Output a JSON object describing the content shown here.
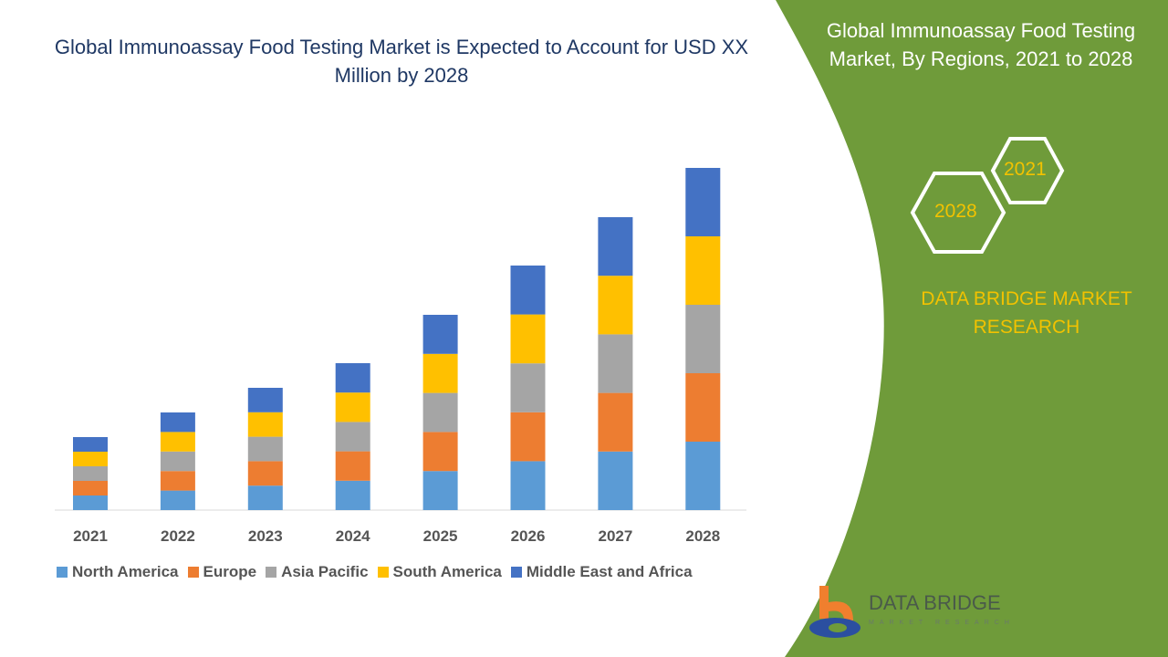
{
  "chart_data": {
    "type": "bar",
    "stacked": true,
    "title": "Global Immunoassay Food Testing Market is Expected to Account for USD XX Million by 2028",
    "categories": [
      "2021",
      "2022",
      "2023",
      "2024",
      "2025",
      "2026",
      "2027",
      "2028"
    ],
    "series": [
      {
        "name": "North America",
        "color": "#5b9bd5",
        "values": [
          16,
          21.4,
          26.8,
          32.2,
          42.8,
          53.6,
          64.2,
          75
        ]
      },
      {
        "name": "Europe",
        "color": "#ed7d31",
        "values": [
          16,
          21.4,
          26.8,
          32.2,
          42.8,
          53.6,
          64.2,
          75
        ]
      },
      {
        "name": "Asia Pacific",
        "color": "#a5a5a5",
        "values": [
          16,
          21.4,
          26.8,
          32.2,
          42.8,
          53.6,
          64.2,
          75
        ]
      },
      {
        "name": "South America",
        "color": "#ffc000",
        "values": [
          16,
          21.4,
          26.8,
          32.2,
          42.8,
          53.6,
          64.2,
          75
        ]
      },
      {
        "name": "Middle East and Africa",
        "color": "#4472c4",
        "values": [
          16,
          21.4,
          26.8,
          32.2,
          42.8,
          53.6,
          64.2,
          75
        ]
      }
    ],
    "yaxis_visible": false,
    "grid": false,
    "legend_position": "bottom"
  },
  "side_panel": {
    "title": "Global Immunoassay Food Testing Market, By Regions, 2021 to 2028",
    "hex_a": "2021",
    "hex_b": "2028",
    "brand": "DATA BRIDGE MARKET RESEARCH",
    "color": "#6f9b3a",
    "accent": "#f2c200"
  },
  "logo": {
    "name": "DATA BRIDGE",
    "sub": "MARKET RESEARCH"
  }
}
